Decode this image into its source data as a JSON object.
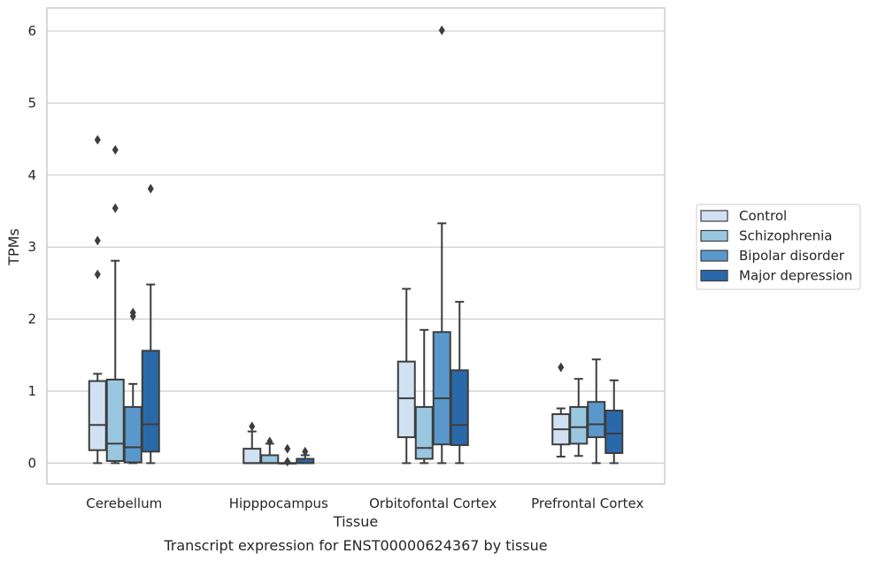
{
  "caption": "Transcript expression for ENST00000624367 by tissue",
  "chart_data": {
    "type": "box",
    "xlabel": "Tissue",
    "ylabel": "TPMs",
    "ylim": [
      -0.29,
      6.32
    ],
    "yticks": [
      0,
      1,
      2,
      3,
      4,
      5,
      6
    ],
    "grid": "horizontal",
    "legend_position": "right",
    "categories": [
      "Cerebellum",
      "Hipppocampus",
      "Orbitofontal Cortex",
      "Prefrontal Cortex"
    ],
    "series": [
      {
        "name": "Control",
        "color": "#d0e1f2",
        "boxes": [
          {
            "q1": 0.18,
            "median": 0.53,
            "q3": 1.14,
            "whisker_low": 0.0,
            "whisker_high": 1.24,
            "outliers": [
              2.62,
              3.09,
              4.49
            ]
          },
          {
            "q1": 0.0,
            "median": 0.0,
            "q3": 0.2,
            "whisker_low": 0.0,
            "whisker_high": 0.44,
            "outliers": [
              0.51
            ]
          },
          {
            "q1": 0.36,
            "median": 0.9,
            "q3": 1.41,
            "whisker_low": 0.0,
            "whisker_high": 2.42,
            "outliers": []
          },
          {
            "q1": 0.26,
            "median": 0.47,
            "q3": 0.68,
            "whisker_low": 0.09,
            "whisker_high": 0.76,
            "outliers": [
              1.33
            ]
          }
        ]
      },
      {
        "name": "Schizophrenia",
        "color": "#9ac7e0",
        "boxes": [
          {
            "q1": 0.03,
            "median": 0.27,
            "q3": 1.16,
            "whisker_low": 0.0,
            "whisker_high": 2.81,
            "outliers": [
              3.54,
              4.35
            ]
          },
          {
            "q1": 0.0,
            "median": 0.0,
            "q3": 0.11,
            "whisker_low": 0.0,
            "whisker_high": 0.27,
            "outliers": [
              0.3
            ]
          },
          {
            "q1": 0.06,
            "median": 0.21,
            "q3": 0.78,
            "whisker_low": 0.0,
            "whisker_high": 1.85,
            "outliers": []
          },
          {
            "q1": 0.27,
            "median": 0.5,
            "q3": 0.78,
            "whisker_low": 0.1,
            "whisker_high": 1.17,
            "outliers": []
          }
        ]
      },
      {
        "name": "Bipolar disorder",
        "color": "#5a98cc",
        "boxes": [
          {
            "q1": 0.01,
            "median": 0.22,
            "q3": 0.78,
            "whisker_low": 0.0,
            "whisker_high": 1.1,
            "outliers": [
              2.04,
              2.09
            ]
          },
          {
            "q1": 0.0,
            "median": 0.0,
            "q3": 0.0,
            "whisker_low": 0.0,
            "whisker_high": 0.0,
            "outliers": [
              0.02,
              0.2
            ]
          },
          {
            "q1": 0.26,
            "median": 0.9,
            "q3": 1.82,
            "whisker_low": 0.0,
            "whisker_high": 3.33,
            "outliers": [
              6.01
            ]
          },
          {
            "q1": 0.36,
            "median": 0.54,
            "q3": 0.85,
            "whisker_low": 0.0,
            "whisker_high": 1.44,
            "outliers": []
          }
        ]
      },
      {
        "name": "Major depression",
        "color": "#2a69a9",
        "boxes": [
          {
            "q1": 0.16,
            "median": 0.54,
            "q3": 1.56,
            "whisker_low": 0.0,
            "whisker_high": 2.48,
            "outliers": [
              3.81
            ]
          },
          {
            "q1": 0.0,
            "median": 0.0,
            "q3": 0.06,
            "whisker_low": 0.0,
            "whisker_high": 0.11,
            "outliers": [
              0.16
            ]
          },
          {
            "q1": 0.25,
            "median": 0.53,
            "q3": 1.29,
            "whisker_low": 0.0,
            "whisker_high": 2.24,
            "outliers": []
          },
          {
            "q1": 0.14,
            "median": 0.41,
            "q3": 0.73,
            "whisker_low": 0.0,
            "whisker_high": 1.15,
            "outliers": []
          }
        ]
      }
    ]
  },
  "colors": {
    "edge": "#3d3d3d",
    "grid": "#cccccc",
    "frame": "#cccccc"
  }
}
